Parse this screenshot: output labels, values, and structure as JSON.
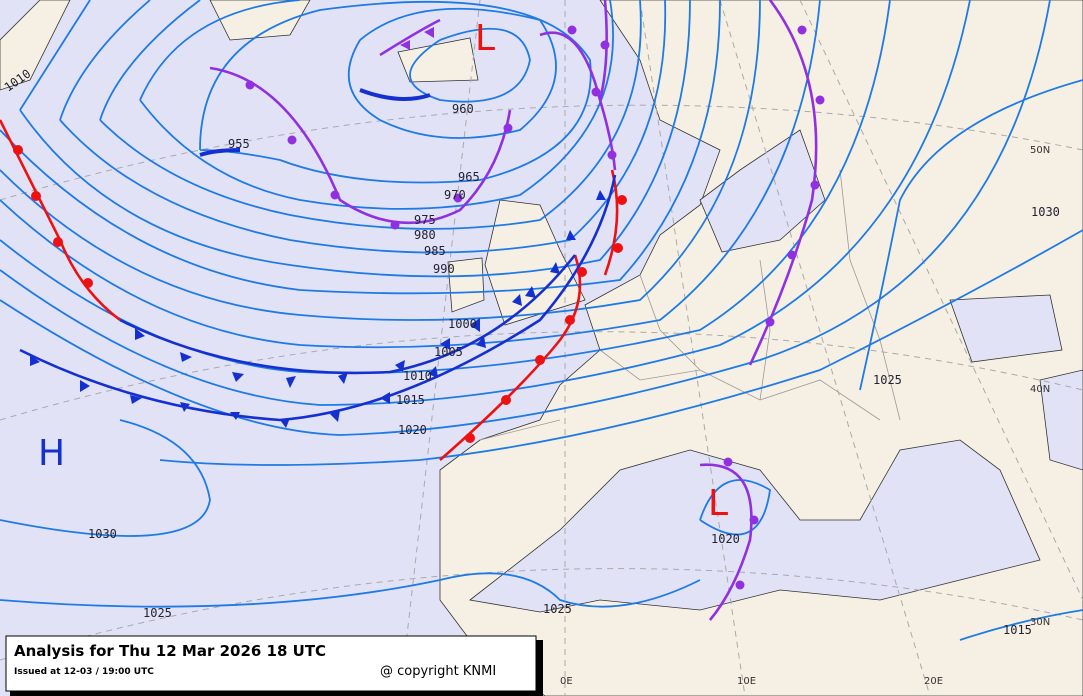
{
  "title": "Analysis for Thu 12 Mar 2026 18 UTC",
  "issued": "Issued at 12-03 / 19:00 UTC",
  "copyright": "@ copyright KNMI",
  "pressure_centers": [
    "L",
    "L",
    "H"
  ],
  "isobar_labels": [
    "1010",
    "955",
    "960",
    "965",
    "970",
    "975",
    "980",
    "985",
    "990",
    "1000",
    "1005",
    "1010",
    "1015",
    "1020",
    "1030",
    "1025",
    "1025",
    "1020",
    "1025",
    "1030",
    "1015"
  ],
  "graticule_labels": [
    "50N",
    "40N",
    "30N",
    "0E",
    "10E",
    "20E"
  ]
}
